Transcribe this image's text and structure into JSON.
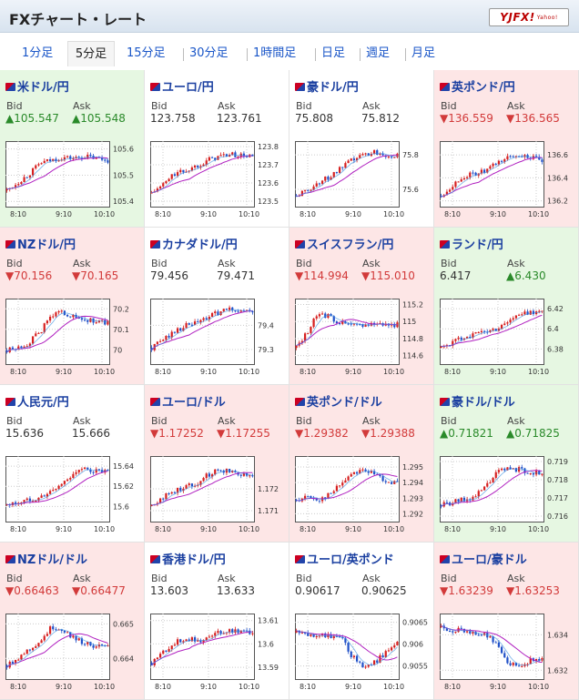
{
  "header": {
    "title": "FXチャート・レート",
    "logo_text": "YJFX!",
    "logo_sub": "Yahoo!"
  },
  "tabs": [
    {
      "label": "1分足",
      "active": false
    },
    {
      "label": "5分足",
      "active": true
    },
    {
      "label": "15分足",
      "active": false
    },
    {
      "label": "30分足",
      "active": false
    },
    {
      "label": "1時間足",
      "active": false
    },
    {
      "label": "日足",
      "active": false
    },
    {
      "label": "週足",
      "active": false
    },
    {
      "label": "月足",
      "active": false
    }
  ],
  "labels": {
    "bid": "Bid",
    "ask": "Ask"
  },
  "colors": {
    "up": "#2a8a2a",
    "down": "#d23a3a",
    "candle_up": "#d62020",
    "candle_down": "#2050c8",
    "ma": "#b020c0",
    "ma_short": "#3a90e0"
  },
  "pairs": [
    {
      "name": "米ドル/円",
      "trend": "up",
      "bid": "▲105.547",
      "ask": "▲105.548",
      "yticks": [
        "105.6",
        "105.5",
        "105.4"
      ],
      "ylim": [
        105.38,
        105.63
      ],
      "xticks": [
        "8:10",
        "9:10",
        "10:10"
      ],
      "start": 105.44,
      "pattern": [
        0.2,
        0.35,
        0.5,
        0.7,
        0.75,
        0.8,
        0.78,
        0.82,
        0.78,
        0.75
      ]
    },
    {
      "name": "ユーロ/円",
      "trend": "flat",
      "bid": "123.758",
      "ask": "123.761",
      "yticks": [
        "123.8",
        "123.7",
        "123.6",
        "123.5"
      ],
      "ylim": [
        123.47,
        123.83
      ],
      "xticks": [
        "8:10",
        "9:10",
        "10:10"
      ],
      "start": 123.5,
      "pattern": [
        0.15,
        0.3,
        0.5,
        0.55,
        0.65,
        0.75,
        0.82,
        0.85,
        0.83,
        0.82
      ]
    },
    {
      "name": "豪ドル/円",
      "trend": "flat",
      "bid": "75.808",
      "ask": "75.812",
      "yticks": [
        "75.8",
        "75.6"
      ],
      "ylim": [
        75.5,
        75.88
      ],
      "xticks": [
        "8:10",
        "9:10",
        "10:10"
      ],
      "start": 75.58,
      "pattern": [
        0.1,
        0.2,
        0.35,
        0.45,
        0.6,
        0.75,
        0.85,
        0.9,
        0.85,
        0.82
      ]
    },
    {
      "name": "英ポンド/円",
      "trend": "down",
      "bid": "▼136.559",
      "ask": "▼136.565",
      "yticks": [
        "136.6",
        "136.4",
        "136.2"
      ],
      "ylim": [
        136.15,
        136.72
      ],
      "xticks": [
        "8:10",
        "9:10",
        "10:10"
      ],
      "start": 136.22,
      "pattern": [
        0.1,
        0.3,
        0.45,
        0.5,
        0.55,
        0.7,
        0.8,
        0.85,
        0.8,
        0.72
      ]
    },
    {
      "name": "NZドル/円",
      "trend": "down",
      "bid": "▼70.156",
      "ask": "▼70.165",
      "yticks": [
        "70.2",
        "70.1",
        "70"
      ],
      "ylim": [
        69.93,
        70.25
      ],
      "xticks": [
        "8:10",
        "9:10",
        "10:10"
      ],
      "start": 69.97,
      "pattern": [
        0.15,
        0.2,
        0.3,
        0.5,
        0.8,
        0.85,
        0.75,
        0.7,
        0.68,
        0.65
      ]
    },
    {
      "name": "カナダドル/円",
      "trend": "flat",
      "bid": "79.456",
      "ask": "79.471",
      "yticks": [
        "79.4",
        "79.3"
      ],
      "ylim": [
        79.24,
        79.51
      ],
      "xticks": [
        "8:10",
        "9:10",
        "10:10"
      ],
      "start": 79.3,
      "pattern": [
        0.2,
        0.35,
        0.5,
        0.6,
        0.65,
        0.75,
        0.85,
        0.9,
        0.88,
        0.85
      ]
    },
    {
      "name": "スイスフラン/円",
      "trend": "down",
      "bid": "▼114.994",
      "ask": "▼115.010",
      "yticks": [
        "115.2",
        "115",
        "114.8",
        "114.6"
      ],
      "ylim": [
        114.5,
        115.27
      ],
      "xticks": [
        "8:10",
        "9:10",
        "10:10"
      ],
      "start": 114.62,
      "pattern": [
        0.2,
        0.5,
        0.85,
        0.75,
        0.65,
        0.6,
        0.62,
        0.65,
        0.63,
        0.62
      ]
    },
    {
      "name": "ランド/円",
      "trend": "up",
      "bid": "6.417",
      "ask": "▲6.430",
      "yticks": [
        "6.42",
        "6.4",
        "6.38"
      ],
      "ylim": [
        6.365,
        6.43
      ],
      "xticks": [
        "8:10",
        "9:10",
        "10:10"
      ],
      "start": 6.375,
      "pattern": [
        0.2,
        0.3,
        0.4,
        0.45,
        0.5,
        0.55,
        0.7,
        0.8,
        0.85,
        0.88
      ]
    },
    {
      "name": "人民元/円",
      "trend": "flat",
      "bid": "15.636",
      "ask": "15.666",
      "yticks": [
        "15.64",
        "15.62",
        "15.6"
      ],
      "ylim": [
        15.585,
        15.65
      ],
      "xticks": [
        "8:10",
        "9:10",
        "10:10"
      ],
      "start": 15.595,
      "pattern": [
        0.2,
        0.25,
        0.3,
        0.35,
        0.45,
        0.6,
        0.8,
        0.85,
        0.82,
        0.8
      ]
    },
    {
      "name": "ユーロ/ドル",
      "trend": "down",
      "bid": "▼1.17252",
      "ask": "▼1.17255",
      "yticks": [
        "1.172",
        "1.171"
      ],
      "ylim": [
        1.1705,
        1.1735
      ],
      "xticks": [
        "8:10",
        "9:10",
        "10:10"
      ],
      "start": 1.1712,
      "pattern": [
        0.2,
        0.35,
        0.45,
        0.55,
        0.6,
        0.75,
        0.85,
        0.82,
        0.78,
        0.75
      ]
    },
    {
      "name": "英ポンド/ドル",
      "trend": "down",
      "bid": "▼1.29382",
      "ask": "▼1.29388",
      "yticks": [
        "1.295",
        "1.294",
        "1.293",
        "1.292"
      ],
      "ylim": [
        1.2915,
        1.2957
      ],
      "xticks": [
        "8:10",
        "9:10",
        "10:10"
      ],
      "start": 1.2925,
      "pattern": [
        0.3,
        0.35,
        0.3,
        0.4,
        0.6,
        0.8,
        0.85,
        0.75,
        0.65,
        0.6
      ]
    },
    {
      "name": "豪ドル/ドル",
      "trend": "up",
      "bid": "▲0.71821",
      "ask": "▲0.71825",
      "yticks": [
        "0.719",
        "0.718",
        "0.717",
        "0.716"
      ],
      "ylim": [
        0.7157,
        0.7193
      ],
      "xticks": [
        "8:10",
        "9:10",
        "10:10"
      ],
      "start": 0.7163,
      "pattern": [
        0.2,
        0.25,
        0.3,
        0.35,
        0.55,
        0.8,
        0.88,
        0.85,
        0.8,
        0.78
      ]
    },
    {
      "name": "NZドル/ドル",
      "trend": "down",
      "bid": "▼0.66463",
      "ask": "▼0.66477",
      "yticks": [
        "0.665",
        "0.664"
      ],
      "ylim": [
        0.6634,
        0.6653
      ],
      "xticks": [
        "8:10",
        "9:10",
        "10:10"
      ],
      "start": 0.6637,
      "pattern": [
        0.15,
        0.3,
        0.45,
        0.6,
        0.85,
        0.8,
        0.65,
        0.55,
        0.5,
        0.48
      ]
    },
    {
      "name": "香港ドル/円",
      "trend": "flat",
      "bid": "13.603",
      "ask": "13.633",
      "yticks": [
        "13.61",
        "13.6",
        "13.59"
      ],
      "ylim": [
        13.585,
        13.613
      ],
      "xticks": [
        "8:10",
        "9:10",
        "10:10"
      ],
      "start": 13.59,
      "pattern": [
        0.2,
        0.4,
        0.55,
        0.65,
        0.6,
        0.65,
        0.75,
        0.8,
        0.78,
        0.75
      ]
    },
    {
      "name": "ユーロ/英ポンド",
      "trend": "flat",
      "bid": "0.90617",
      "ask": "0.90625",
      "yticks": [
        "0.9065",
        "0.906",
        "0.9055"
      ],
      "ylim": [
        0.9052,
        0.9067
      ],
      "xticks": [
        "8:10",
        "9:10",
        "10:10"
      ],
      "start": 0.9063,
      "pattern": [
        0.75,
        0.7,
        0.72,
        0.68,
        0.65,
        0.3,
        0.15,
        0.2,
        0.4,
        0.55
      ]
    },
    {
      "name": "ユーロ/豪ドル",
      "trend": "down",
      "bid": "▼1.63239",
      "ask": "▼1.63253",
      "yticks": [
        "1.634",
        "1.632"
      ],
      "ylim": [
        1.6315,
        1.6352
      ],
      "xticks": [
        "8:10",
        "9:10",
        "10:10"
      ],
      "start": 1.6345,
      "pattern": [
        0.85,
        0.8,
        0.78,
        0.75,
        0.7,
        0.55,
        0.2,
        0.15,
        0.25,
        0.3
      ]
    }
  ]
}
